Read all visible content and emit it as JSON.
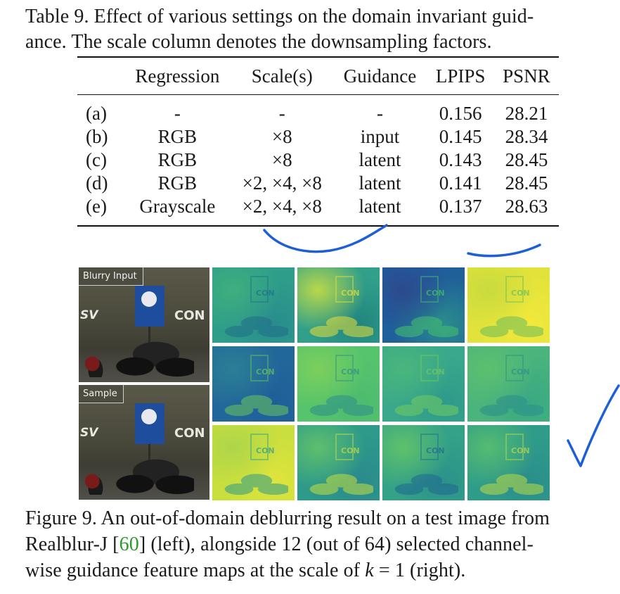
{
  "table_caption": {
    "line1": "Table 9. Effect of various settings on the domain invariant guid-",
    "line2": "ance. The scale column denotes the downsampling factors."
  },
  "table": {
    "headers": [
      "",
      "Regression",
      "Scale(s)",
      "Guidance",
      "LPIPS",
      "PSNR"
    ],
    "rows": [
      [
        "(a)",
        "-",
        "-",
        "-",
        "0.156",
        "28.21"
      ],
      [
        "(b)",
        "RGB",
        "×8",
        "input",
        "0.145",
        "28.34"
      ],
      [
        "(c)",
        "RGB",
        "×8",
        "latent",
        "0.143",
        "28.45"
      ],
      [
        "(d)",
        "RGB",
        "×2, ×4, ×8",
        "latent",
        "0.141",
        "28.45"
      ],
      [
        "(e)",
        "Grayscale",
        "×2, ×4, ×8",
        "latent",
        "0.137",
        "28.63"
      ]
    ]
  },
  "figure": {
    "photo_labels": {
      "blurry": "Blurry Input",
      "sample": "Sample"
    },
    "scene_text": {
      "wall": "CON",
      "logo": "SV"
    },
    "feature_maps": [
      {
        "colors": [
          "#2e9e8a",
          "#3fae7e",
          "#2a8c8d"
        ],
        "ink": "#1f6f88"
      },
      {
        "colors": [
          "#31a08a",
          "#b9d84a",
          "#22857f"
        ],
        "ink": "#e8e03a"
      },
      {
        "colors": [
          "#1f5f9a",
          "#2c4a8f",
          "#2a8d8c"
        ],
        "ink": "#47c16e"
      },
      {
        "colors": [
          "#e2e33a",
          "#c8db3e",
          "#f2e83c"
        ],
        "ink": "#6bbd5a"
      },
      {
        "colors": [
          "#22679a",
          "#2b7f95",
          "#1f5f99"
        ],
        "ink": "#6cc75e"
      },
      {
        "colors": [
          "#56c46c",
          "#7ccf5c",
          "#4dbb6f"
        ],
        "ink": "#2c8f8a"
      },
      {
        "colors": [
          "#3aa88a",
          "#4ab67d",
          "#2d9a8b"
        ],
        "ink": "#72cd60"
      },
      {
        "colors": [
          "#49b47c",
          "#5dc06f",
          "#3aa884"
        ],
        "ink": "#2b8e8b"
      },
      {
        "colors": [
          "#c9df3e",
          "#aed649",
          "#e0e43b"
        ],
        "ink": "#2d9b89"
      },
      {
        "colors": [
          "#2d9a8a",
          "#5ebf6c",
          "#2a8a8c"
        ],
        "ink": "#c7df40"
      },
      {
        "colors": [
          "#34a287",
          "#5fc16b",
          "#2b928a"
        ],
        "ink": "#1f6890"
      },
      {
        "colors": [
          "#2f9c89",
          "#55bc70",
          "#2a8e8b"
        ],
        "ink": "#bedb46"
      }
    ]
  },
  "figure_caption": {
    "line1": "Figure 9. An out-of-domain deblurring result on a test image from",
    "line2_pre": "Realblur-J [",
    "cite": "60",
    "line2_post": "] (left), alongside 12 (out of 64) selected channel-",
    "line3_pre": "wise guidance feature maps at the scale of ",
    "math": "k",
    "line3_post": " = 1 (right)."
  },
  "annotation_color": "#1d5fd6"
}
